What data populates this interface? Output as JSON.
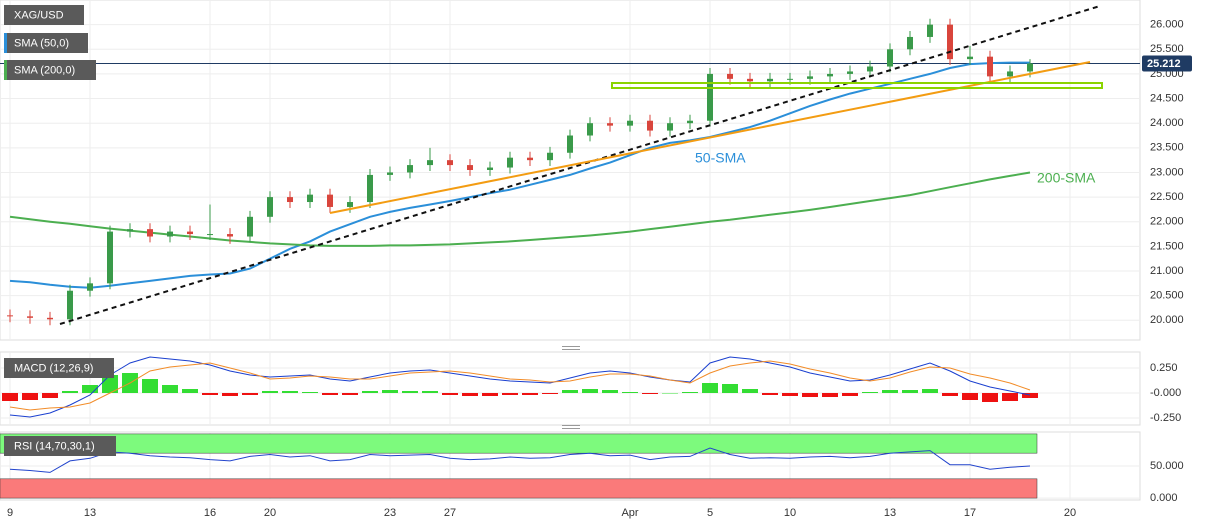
{
  "chart_data": [
    {
      "type": "candlestick",
      "title": "XAG/USD",
      "categories": [
        "9",
        null,
        null,
        null,
        "13",
        null,
        null,
        null,
        null,
        null,
        "16",
        null,
        null,
        "20",
        null,
        null,
        null,
        null,
        null,
        "23",
        null,
        null,
        "27",
        null,
        null,
        null,
        null,
        null,
        null,
        null,
        null,
        "Apr",
        null,
        null,
        null,
        "5",
        null,
        null,
        null,
        "10",
        null,
        null,
        null,
        null,
        "13",
        null,
        null,
        null,
        "17",
        null,
        null,
        null,
        null,
        "20",
        null,
        null,
        null
      ],
      "open": [
        20.1,
        20.08,
        20.05,
        20.02,
        20.6,
        20.75,
        21.8,
        21.85,
        21.7,
        21.8,
        21.75,
        21.75,
        21.7,
        22.1,
        22.5,
        22.4,
        22.55,
        22.3,
        22.4,
        22.95,
        23.0,
        23.15,
        23.25,
        23.15,
        23.05,
        23.1,
        23.3,
        23.25,
        23.4,
        23.75,
        24.0,
        23.95,
        24.05,
        23.85,
        24.0,
        24.05,
        25.0,
        24.9,
        24.85,
        24.9,
        24.9,
        24.95,
        25.0,
        25.05,
        25.15,
        25.5,
        25.75,
        26.0,
        25.3,
        25.35,
        24.95,
        25.05,
        null,
        null,
        null,
        null,
        null
      ],
      "high": [
        20.22,
        20.2,
        20.17,
        20.72,
        20.87,
        21.92,
        21.97,
        21.97,
        21.92,
        21.92,
        22.35,
        21.87,
        22.22,
        22.62,
        22.62,
        22.67,
        22.67,
        22.52,
        23.07,
        23.12,
        23.27,
        23.5,
        23.37,
        23.27,
        23.22,
        23.42,
        23.42,
        23.52,
        23.87,
        24.12,
        24.12,
        24.17,
        24.17,
        24.12,
        24.17,
        25.12,
        25.12,
        25.02,
        25.02,
        25.02,
        25.07,
        25.12,
        25.17,
        25.27,
        25.62,
        25.87,
        26.12,
        26.12,
        25.57,
        25.47,
        25.17,
        25.3,
        null,
        null,
        null,
        null,
        null
      ],
      "low": [
        19.96,
        19.93,
        19.9,
        19.9,
        20.48,
        20.63,
        21.68,
        21.58,
        21.58,
        21.63,
        21.63,
        21.55,
        21.58,
        21.98,
        22.28,
        22.28,
        22.18,
        22.18,
        22.28,
        22.83,
        22.88,
        23.03,
        23.03,
        22.93,
        22.93,
        22.98,
        23.13,
        23.13,
        23.28,
        23.63,
        23.83,
        23.83,
        23.73,
        23.73,
        23.88,
        23.93,
        24.78,
        24.73,
        24.73,
        24.78,
        24.78,
        24.83,
        24.88,
        24.93,
        25.03,
        25.38,
        25.63,
        25.18,
        25.18,
        24.83,
        24.83,
        24.93,
        null,
        null,
        null,
        null,
        null
      ],
      "close": [
        20.08,
        20.05,
        20.02,
        20.6,
        20.75,
        21.8,
        21.85,
        21.7,
        21.8,
        21.75,
        21.75,
        21.7,
        22.1,
        22.5,
        22.4,
        22.55,
        22.3,
        22.4,
        22.95,
        23.0,
        23.15,
        23.25,
        23.15,
        23.05,
        23.1,
        23.3,
        23.25,
        23.4,
        23.75,
        24.0,
        23.95,
        24.05,
        23.85,
        24.0,
        24.05,
        25.0,
        24.9,
        24.85,
        24.9,
        24.9,
        24.95,
        25.0,
        25.05,
        25.15,
        25.5,
        25.75,
        26.0,
        25.3,
        25.35,
        24.95,
        25.05,
        25.212,
        null,
        null,
        null,
        null,
        null
      ],
      "last_label": "25.212",
      "up_color": "#3a9a4a",
      "down_color": "#d9453c",
      "series": [
        {
          "name": "SMA (50,0)",
          "color": "#2b8fd9",
          "values": [
            20.8,
            20.77,
            20.72,
            20.68,
            20.66,
            20.7,
            20.75,
            20.8,
            20.85,
            20.9,
            20.93,
            20.95,
            21.05,
            21.25,
            21.45,
            21.6,
            21.8,
            21.95,
            22.1,
            22.2,
            22.28,
            22.35,
            22.42,
            22.5,
            22.58,
            22.65,
            22.75,
            22.85,
            22.95,
            23.08,
            23.2,
            23.35,
            23.5,
            23.6,
            23.65,
            23.72,
            23.82,
            23.92,
            24.05,
            24.2,
            24.35,
            24.48,
            24.6,
            24.7,
            24.8,
            24.9,
            25.0,
            25.12,
            25.2,
            25.22,
            25.23,
            25.23,
            null,
            null,
            null,
            null,
            null
          ]
        },
        {
          "name": "SMA (200,0)",
          "color": "#4caf50",
          "values": [
            22.1,
            22.05,
            22.0,
            21.96,
            21.91,
            21.86,
            21.82,
            21.78,
            21.74,
            21.7,
            21.66,
            21.62,
            21.59,
            21.56,
            21.54,
            21.52,
            21.51,
            21.51,
            21.51,
            21.52,
            21.52,
            21.53,
            21.54,
            21.56,
            21.58,
            21.6,
            21.63,
            21.66,
            21.69,
            21.72,
            21.76,
            21.8,
            21.85,
            21.9,
            21.95,
            22.0,
            22.04,
            22.09,
            22.14,
            22.19,
            22.24,
            22.3,
            22.36,
            22.42,
            22.48,
            22.54,
            22.62,
            22.7,
            22.78,
            22.86,
            22.93,
            23.0,
            null,
            null,
            null,
            null,
            null
          ]
        }
      ],
      "annotations": [
        "50-SMA",
        "200-SMA"
      ],
      "ylim": [
        19.6,
        26.5
      ],
      "yticks": [
        {
          "value": 20,
          "label": "20.000"
        },
        {
          "value": 20.5,
          "label": "20.500"
        },
        {
          "value": 21,
          "label": "21.000"
        },
        {
          "value": 21.5,
          "label": "21.500"
        },
        {
          "value": 22,
          "label": "22.000"
        },
        {
          "value": 22.5,
          "label": "22.500"
        },
        {
          "value": 23,
          "label": "23.000"
        },
        {
          "value": 23.5,
          "label": "23.500"
        },
        {
          "value": 24,
          "label": "24.000"
        },
        {
          "value": 24.5,
          "label": "24.500"
        },
        {
          "value": 25,
          "label": "25.000"
        },
        {
          "value": 25.5,
          "label": "25.500"
        },
        {
          "value": 26,
          "label": "26.000"
        }
      ],
      "grid": true
    },
    {
      "type": "macd",
      "title": "MACD (12,26,9)",
      "histogram": [
        -0.08,
        -0.07,
        -0.05,
        0.02,
        0.08,
        0.18,
        0.2,
        0.14,
        0.08,
        0.04,
        -0.02,
        -0.03,
        -0.02,
        0.02,
        0.02,
        0.01,
        -0.02,
        -0.02,
        0.02,
        0.03,
        0.02,
        0.02,
        -0.02,
        -0.03,
        -0.03,
        -0.02,
        -0.02,
        -0.01,
        0.03,
        0.04,
        0.03,
        0.01,
        -0.01,
        0.0,
        0.01,
        0.1,
        0.09,
        0.04,
        -0.02,
        -0.03,
        -0.04,
        -0.04,
        -0.03,
        0.01,
        0.03,
        0.03,
        0.04,
        -0.03,
        -0.07,
        -0.09,
        -0.08,
        -0.05
      ],
      "positive_color": "#33dd33",
      "negative_color": "#ee1111",
      "series": [
        {
          "color": "#1a3fcf",
          "values": [
            -0.22,
            -0.24,
            -0.2,
            -0.12,
            -0.02,
            0.18,
            0.3,
            0.36,
            0.34,
            0.32,
            0.28,
            0.22,
            0.18,
            0.16,
            0.17,
            0.18,
            0.14,
            0.12,
            0.16,
            0.2,
            0.22,
            0.23,
            0.2,
            0.17,
            0.14,
            0.12,
            0.11,
            0.1,
            0.15,
            0.2,
            0.22,
            0.2,
            0.16,
            0.13,
            0.11,
            0.3,
            0.36,
            0.34,
            0.3,
            0.26,
            0.2,
            0.16,
            0.12,
            0.13,
            0.18,
            0.24,
            0.3,
            0.22,
            0.12,
            0.06,
            0.02,
            -0.02
          ]
        },
        {
          "color": "#f28c28",
          "values": [
            -0.14,
            -0.17,
            -0.15,
            -0.14,
            -0.1,
            0.0,
            0.1,
            0.22,
            0.26,
            0.28,
            0.3,
            0.25,
            0.2,
            0.14,
            0.15,
            0.17,
            0.16,
            0.14,
            0.14,
            0.17,
            0.2,
            0.21,
            0.22,
            0.2,
            0.17,
            0.14,
            0.13,
            0.11,
            0.12,
            0.16,
            0.19,
            0.19,
            0.17,
            0.13,
            0.1,
            0.2,
            0.27,
            0.3,
            0.32,
            0.29,
            0.24,
            0.2,
            0.15,
            0.12,
            0.15,
            0.21,
            0.26,
            0.25,
            0.19,
            0.15,
            0.1,
            0.03
          ]
        }
      ],
      "ylim": [
        -0.32,
        0.41
      ],
      "yticks": [
        {
          "value": 0.25,
          "label": "0.250"
        },
        {
          "value": 0,
          "label": "-0.000"
        },
        {
          "value": -0.25,
          "label": "-0.250"
        }
      ],
      "grid": true
    },
    {
      "type": "rsi",
      "title": "RSI (14,70,30,1)",
      "values": [
        45,
        43,
        40,
        58,
        62,
        72,
        70,
        66,
        64,
        63,
        60,
        58,
        65,
        68,
        64,
        66,
        58,
        60,
        68,
        66,
        67,
        68,
        62,
        60,
        61,
        64,
        62,
        63,
        68,
        70,
        66,
        67,
        60,
        64,
        65,
        78,
        68,
        62,
        63,
        62,
        64,
        65,
        63,
        65,
        70,
        72,
        74,
        52,
        52,
        45,
        48,
        50
      ],
      "color": "#2244cc",
      "zones": [
        {
          "from": 70,
          "to": 100,
          "color": "#7dfa7d"
        },
        {
          "from": 0,
          "to": 30,
          "color": "#fa7a7a"
        }
      ],
      "ylim": [
        -3,
        103
      ],
      "yticks": [
        {
          "value": 50,
          "label": "50.000"
        },
        {
          "value": 0,
          "label": "0.000"
        }
      ],
      "grid": true
    }
  ]
}
